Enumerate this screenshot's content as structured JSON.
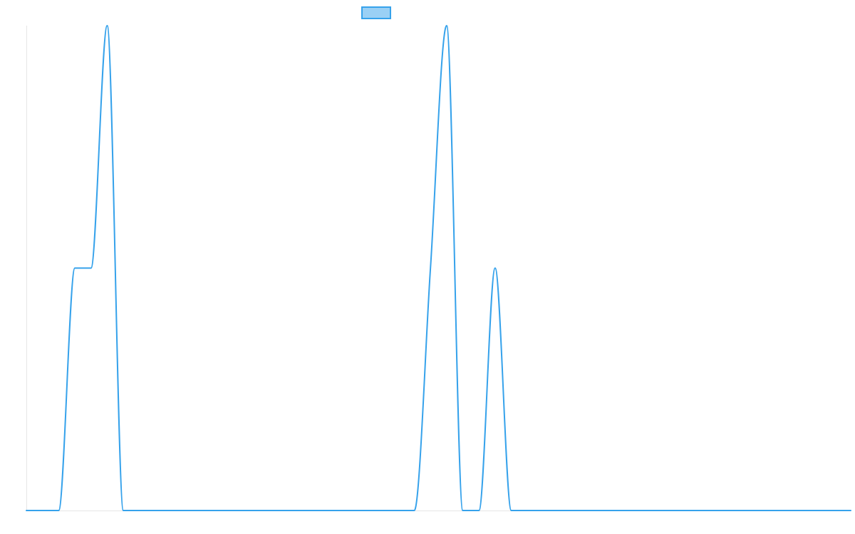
{
  "chart_data": {
    "type": "line",
    "title": "",
    "xlabel": "",
    "ylabel": "",
    "grid": false,
    "legend": "top-center",
    "xlim": [
      0,
      51
    ],
    "ylim": [
      0,
      1
    ],
    "series": [
      {
        "color": "#36a2eb",
        "fill": "#9ad0f5",
        "curve": "monotone",
        "points": [
          [
            0,
            0
          ],
          [
            2,
            0
          ],
          [
            3,
            0.5
          ],
          [
            4,
            0.5
          ],
          [
            5,
            1
          ],
          [
            6,
            0
          ],
          [
            24,
            0
          ],
          [
            25,
            0.5
          ],
          [
            26,
            1
          ],
          [
            27,
            0
          ],
          [
            28,
            0
          ],
          [
            29,
            0.5
          ],
          [
            30,
            0
          ],
          [
            51,
            0
          ]
        ]
      }
    ]
  }
}
